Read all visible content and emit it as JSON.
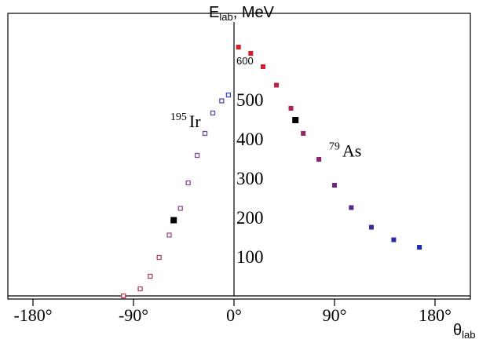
{
  "chart_data": {
    "type": "scatter",
    "title": "",
    "ylabel": {
      "main": "E",
      "sub": "lab",
      "suffix": ", MeV"
    },
    "xlabel": {
      "main": "θ",
      "sub": "lab"
    },
    "xlim": [
      -215,
      215
    ],
    "ylim": [
      0,
      660
    ],
    "x_ticks": [
      {
        "value": -180,
        "label": "-180°"
      },
      {
        "value": -90,
        "label": "-90°"
      },
      {
        "value": 0,
        "label": "0°"
      },
      {
        "value": 90,
        "label": "90°"
      },
      {
        "value": 180,
        "label": "180°"
      }
    ],
    "y_ticks": [
      {
        "value": 100,
        "label": "100"
      },
      {
        "value": 200,
        "label": "200"
      },
      {
        "value": 300,
        "label": "300"
      },
      {
        "value": 400,
        "label": "400"
      },
      {
        "value": 500,
        "label": "500"
      },
      {
        "value": 600,
        "label": "600"
      }
    ],
    "annotations": [
      {
        "sup": "195",
        "text": "Ir",
        "x": -50,
        "y": 430
      },
      {
        "sup": "79",
        "text": "As",
        "x": 92,
        "y": 355
      }
    ],
    "series": [
      {
        "marker": "open-square",
        "points": [
          {
            "x": -99,
            "y": 0,
            "color": "#c0394f"
          },
          {
            "x": -84,
            "y": 18,
            "color": "#b8415a"
          },
          {
            "x": -75,
            "y": 50,
            "color": "#b04664"
          },
          {
            "x": -67,
            "y": 98,
            "color": "#a84a6e"
          },
          {
            "x": -58,
            "y": 155,
            "color": "#9e4c78"
          },
          {
            "x": -48,
            "y": 223,
            "color": "#924d82"
          },
          {
            "x": -41,
            "y": 288,
            "color": "#884e8c"
          },
          {
            "x": -33,
            "y": 358,
            "color": "#7c4f96"
          },
          {
            "x": -26,
            "y": 414,
            "color": "#6f4ea0"
          },
          {
            "x": -19,
            "y": 466,
            "color": "#5f4daa"
          },
          {
            "x": -11,
            "y": 497,
            "color": "#4f4cb4"
          },
          {
            "x": -5,
            "y": 512,
            "color": "#4049be"
          }
        ]
      },
      {
        "marker": "filled-square",
        "points": [
          {
            "x": 4,
            "y": 634,
            "color": "#e01a1a"
          },
          {
            "x": 15,
            "y": 618,
            "color": "#d91c22"
          },
          {
            "x": 26,
            "y": 584,
            "color": "#cf1f33"
          },
          {
            "x": 38,
            "y": 537,
            "color": "#c21f44"
          },
          {
            "x": 51,
            "y": 478,
            "color": "#b02055"
          },
          {
            "x": 62,
            "y": 414,
            "color": "#9c2263"
          },
          {
            "x": 76,
            "y": 348,
            "color": "#862470"
          },
          {
            "x": 90,
            "y": 282,
            "color": "#6e267e"
          },
          {
            "x": 105,
            "y": 225,
            "color": "#56278b"
          },
          {
            "x": 123,
            "y": 175,
            "color": "#402898"
          },
          {
            "x": 143,
            "y": 143,
            "color": "#2c29a6"
          },
          {
            "x": 166,
            "y": 124,
            "color": "#1f2ab8"
          }
        ]
      },
      {
        "marker": "filled-square",
        "points": [
          {
            "x": -54,
            "y": 193,
            "color": "#000000"
          },
          {
            "x": 55,
            "y": 448,
            "color": "#000000"
          }
        ]
      }
    ]
  }
}
